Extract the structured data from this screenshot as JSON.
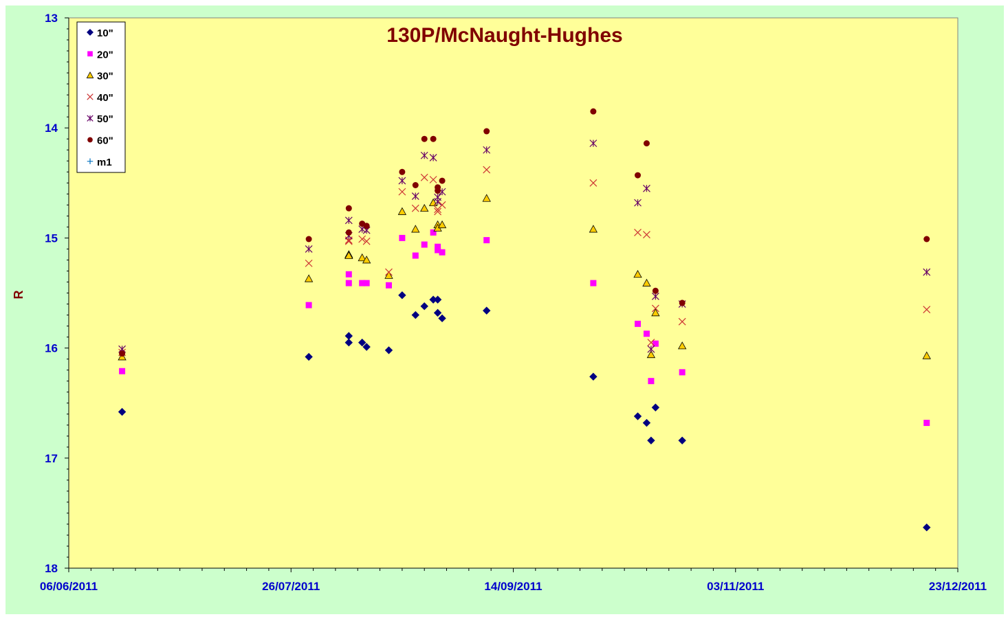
{
  "chart_data": {
    "type": "scatter",
    "title": "130P/McNaught-Hughes",
    "xlabel": "",
    "ylabel": "R",
    "x_axis_type": "date",
    "xlim": [
      "2011-06-06",
      "2011-12-23"
    ],
    "x_tick_labels": [
      "06/06/2011",
      "26/07/2011",
      "14/09/2011",
      "03/11/2011",
      "23/12/2011"
    ],
    "x_tick_dates": [
      "2011-06-06",
      "2011-07-26",
      "2011-09-14",
      "2011-11-03",
      "2011-12-23"
    ],
    "ylim": [
      13,
      18
    ],
    "y_inverted": true,
    "y_ticks": [
      13,
      14,
      15,
      16,
      17,
      18
    ],
    "grid": false,
    "legend_position": "top-left",
    "colors": {
      "plot_background": "#ffff99",
      "chart_background": "#ccffcc",
      "title": "#800000",
      "tick_labels": "#0000cc",
      "ylabel": "#800000"
    },
    "series": [
      {
        "name": "10\"",
        "marker": "diamond",
        "color": "#000080",
        "points": [
          [
            "2011-06-18",
            16.58
          ],
          [
            "2011-07-30",
            16.08
          ],
          [
            "2011-08-08",
            15.89
          ],
          [
            "2011-08-08",
            15.95
          ],
          [
            "2011-08-11",
            15.95
          ],
          [
            "2011-08-12",
            15.99
          ],
          [
            "2011-08-17",
            16.02
          ],
          [
            "2011-08-20",
            15.52
          ],
          [
            "2011-08-23",
            15.7
          ],
          [
            "2011-08-25",
            15.62
          ],
          [
            "2011-08-27",
            15.56
          ],
          [
            "2011-08-28",
            15.56
          ],
          [
            "2011-08-28",
            15.68
          ],
          [
            "2011-08-29",
            15.73
          ],
          [
            "2011-09-08",
            15.66
          ],
          [
            "2011-10-02",
            16.26
          ],
          [
            "2011-10-12",
            16.62
          ],
          [
            "2011-10-14",
            16.68
          ],
          [
            "2011-10-15",
            16.84
          ],
          [
            "2011-10-16",
            16.54
          ],
          [
            "2011-10-22",
            16.84
          ],
          [
            "2011-12-16",
            17.63
          ]
        ]
      },
      {
        "name": "20\"",
        "marker": "square",
        "color": "#ff00ff",
        "points": [
          [
            "2011-06-18",
            16.21
          ],
          [
            "2011-07-30",
            15.61
          ],
          [
            "2011-08-08",
            15.33
          ],
          [
            "2011-08-08",
            15.41
          ],
          [
            "2011-08-11",
            15.41
          ],
          [
            "2011-08-12",
            15.41
          ],
          [
            "2011-08-17",
            15.43
          ],
          [
            "2011-08-20",
            15.0
          ],
          [
            "2011-08-23",
            15.16
          ],
          [
            "2011-08-25",
            15.06
          ],
          [
            "2011-08-27",
            14.95
          ],
          [
            "2011-08-28",
            15.08
          ],
          [
            "2011-08-28",
            15.11
          ],
          [
            "2011-08-29",
            15.13
          ],
          [
            "2011-09-08",
            15.02
          ],
          [
            "2011-10-02",
            15.41
          ],
          [
            "2011-10-12",
            15.78
          ],
          [
            "2011-10-14",
            15.87
          ],
          [
            "2011-10-15",
            16.3
          ],
          [
            "2011-10-16",
            15.96
          ],
          [
            "2011-10-22",
            16.22
          ],
          [
            "2011-12-16",
            16.68
          ]
        ]
      },
      {
        "name": "30\"",
        "marker": "triangle",
        "color": "#ffcc00",
        "points": [
          [
            "2011-06-18",
            16.08
          ],
          [
            "2011-07-30",
            15.37
          ],
          [
            "2011-08-08",
            15.15
          ],
          [
            "2011-08-08",
            15.16
          ],
          [
            "2011-08-11",
            15.18
          ],
          [
            "2011-08-12",
            15.2
          ],
          [
            "2011-08-17",
            15.34
          ],
          [
            "2011-08-20",
            14.76
          ],
          [
            "2011-08-23",
            14.92
          ],
          [
            "2011-08-25",
            14.73
          ],
          [
            "2011-08-27",
            14.68
          ],
          [
            "2011-08-28",
            14.88
          ],
          [
            "2011-08-28",
            14.91
          ],
          [
            "2011-08-29",
            14.88
          ],
          [
            "2011-09-08",
            14.64
          ],
          [
            "2011-10-02",
            14.92
          ],
          [
            "2011-10-12",
            15.33
          ],
          [
            "2011-10-14",
            15.41
          ],
          [
            "2011-10-15",
            16.06
          ],
          [
            "2011-10-16",
            15.68
          ],
          [
            "2011-10-22",
            15.98
          ],
          [
            "2011-12-16",
            16.07
          ]
        ]
      },
      {
        "name": "40\"",
        "marker": "x",
        "color": "#cc3333",
        "points": [
          [
            "2011-06-18",
            16.04
          ],
          [
            "2011-07-30",
            15.23
          ],
          [
            "2011-08-08",
            15.03
          ],
          [
            "2011-08-08",
            15.02
          ],
          [
            "2011-08-11",
            15.01
          ],
          [
            "2011-08-12",
            15.03
          ],
          [
            "2011-08-17",
            15.31
          ],
          [
            "2011-08-20",
            14.58
          ],
          [
            "2011-08-23",
            14.73
          ],
          [
            "2011-08-25",
            14.45
          ],
          [
            "2011-08-27",
            14.47
          ],
          [
            "2011-08-28",
            14.74
          ],
          [
            "2011-08-28",
            14.76
          ],
          [
            "2011-08-29",
            14.7
          ],
          [
            "2011-09-08",
            14.38
          ],
          [
            "2011-10-02",
            14.5
          ],
          [
            "2011-10-12",
            14.95
          ],
          [
            "2011-10-14",
            14.97
          ],
          [
            "2011-10-15",
            15.95
          ],
          [
            "2011-10-16",
            15.64
          ],
          [
            "2011-10-22",
            15.76
          ],
          [
            "2011-12-16",
            15.65
          ]
        ]
      },
      {
        "name": "50\"",
        "marker": "asterisk",
        "color": "#660066",
        "points": [
          [
            "2011-06-18",
            16.01
          ],
          [
            "2011-07-30",
            15.1
          ],
          [
            "2011-08-08",
            14.84
          ],
          [
            "2011-08-08",
            14.98
          ],
          [
            "2011-08-11",
            14.92
          ],
          [
            "2011-08-12",
            14.93
          ],
          [
            "2011-08-20",
            14.48
          ],
          [
            "2011-08-23",
            14.62
          ],
          [
            "2011-08-25",
            14.25
          ],
          [
            "2011-08-27",
            14.27
          ],
          [
            "2011-08-28",
            14.63
          ],
          [
            "2011-08-28",
            14.67
          ],
          [
            "2011-08-29",
            14.58
          ],
          [
            "2011-09-08",
            14.2
          ],
          [
            "2011-10-02",
            14.14
          ],
          [
            "2011-10-12",
            14.68
          ],
          [
            "2011-10-14",
            14.55
          ],
          [
            "2011-10-15",
            16.01
          ],
          [
            "2011-10-16",
            15.53
          ],
          [
            "2011-10-22",
            15.6
          ],
          [
            "2011-12-16",
            15.31
          ]
        ]
      },
      {
        "name": "60\"",
        "marker": "circle",
        "color": "#800000",
        "points": [
          [
            "2011-06-18",
            16.05
          ],
          [
            "2011-07-30",
            15.01
          ],
          [
            "2011-08-08",
            14.73
          ],
          [
            "2011-08-08",
            14.95
          ],
          [
            "2011-08-11",
            14.87
          ],
          [
            "2011-08-12",
            14.89
          ],
          [
            "2011-08-20",
            14.4
          ],
          [
            "2011-08-23",
            14.52
          ],
          [
            "2011-08-25",
            14.1
          ],
          [
            "2011-08-27",
            14.1
          ],
          [
            "2011-08-28",
            14.54
          ],
          [
            "2011-08-28",
            14.57
          ],
          [
            "2011-08-29",
            14.48
          ],
          [
            "2011-09-08",
            14.03
          ],
          [
            "2011-10-02",
            13.85
          ],
          [
            "2011-10-12",
            14.43
          ],
          [
            "2011-10-14",
            14.14
          ],
          [
            "2011-10-16",
            15.48
          ],
          [
            "2011-10-22",
            15.59
          ],
          [
            "2011-12-16",
            15.01
          ]
        ]
      },
      {
        "name": "m1",
        "marker": "plus",
        "color": "#0070c0",
        "points": []
      }
    ]
  }
}
